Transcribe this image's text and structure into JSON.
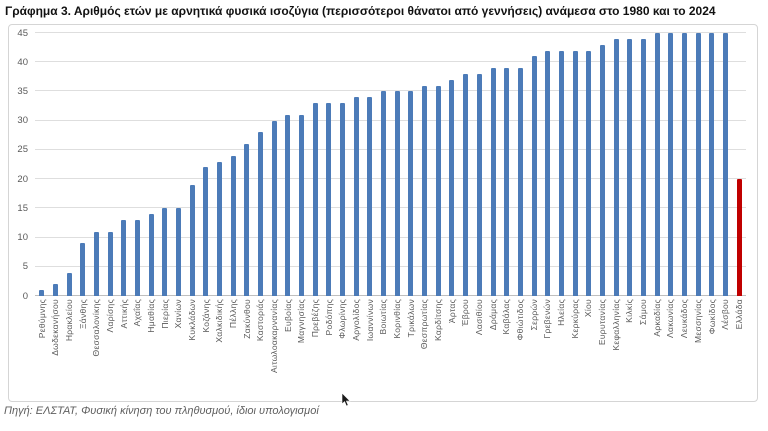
{
  "page": {
    "title": "Γράφημα 3. Αριθμός ετών με αρνητικά φυσικά ισοζύγια (περισσότεροι θάνατοι από γεννήσεις) ανάμεσα στο 1980 και το 2024",
    "source_note": "Πηγή: ΕΛΣΤΑΤ, Φυσική κίνηση του πληθυσμού, ίδιοι υπολογισμοί"
  },
  "chart_data": {
    "type": "bar",
    "title": "Γράφημα 3. Αριθμός ετών με αρνητικά φυσικά ισοζύγια (περισσότεροι θάνατοι από γεννήσεις) ανάμεσα στο 1980 και το 2024",
    "xlabel": "",
    "ylabel": "",
    "ylim": [
      0,
      45
    ],
    "yticks": [
      0,
      5,
      10,
      15,
      20,
      25,
      30,
      35,
      40,
      45
    ],
    "grid": "horizontal",
    "legend": "none",
    "bar_color": "#4C7BB8",
    "highlight_category": "Ελλάδα",
    "highlight_color": "#C00000",
    "categories": [
      "Ρεθύμνης",
      "Δωδεκανήσου",
      "Ηρακλείου",
      "Ξάνθης",
      "Θεσσαλονίκης",
      "Λαρίσης",
      "Αττικής",
      "Αχαΐας",
      "Ημαθίας",
      "Πιερίας",
      "Χανίων",
      "Κυκλάδων",
      "Κοζάνης",
      "Χαλκιδικής",
      "Πέλλης",
      "Ζακύνθου",
      "Καστοριάς",
      "Αιτωλοακαρνανίας",
      "Ευβοίας",
      "Μαγνησίας",
      "Πρεβέζης",
      "Ροδόπης",
      "Φλωρίνης",
      "Αργολίδος",
      "Ιωαννίνων",
      "Βοιωτίας",
      "Κορινθίας",
      "Τρικάλων",
      "Θεσπρωτίας",
      "Καρδίτσης",
      "Άρτας",
      "Έβρου",
      "Λασιθίου",
      "Δράμας",
      "Καβάλας",
      "Φθιώτιδος",
      "Σερρών",
      "Γρεβενών",
      "Ηλείας",
      "Κερκύρας",
      "Χίου",
      "Ευρυτανίας",
      "Κεφαλληνίας",
      "Κιλκίς",
      "Σάμου",
      "Αρκαδίας",
      "Λακωνίας",
      "Λευκάδος",
      "Μεσσηνίας",
      "Φωκίδος",
      "Λέσβου",
      "Ελλάδα"
    ],
    "values": [
      1,
      2,
      4,
      9,
      11,
      11,
      13,
      13,
      14,
      15,
      15,
      19,
      22,
      23,
      24,
      26,
      28,
      30,
      31,
      31,
      33,
      33,
      33,
      34,
      34,
      35,
      35,
      35,
      36,
      36,
      37,
      38,
      38,
      39,
      39,
      39,
      41,
      42,
      42,
      42,
      42,
      43,
      44,
      44,
      44,
      45,
      45,
      45,
      45,
      45,
      45,
      20
    ]
  }
}
